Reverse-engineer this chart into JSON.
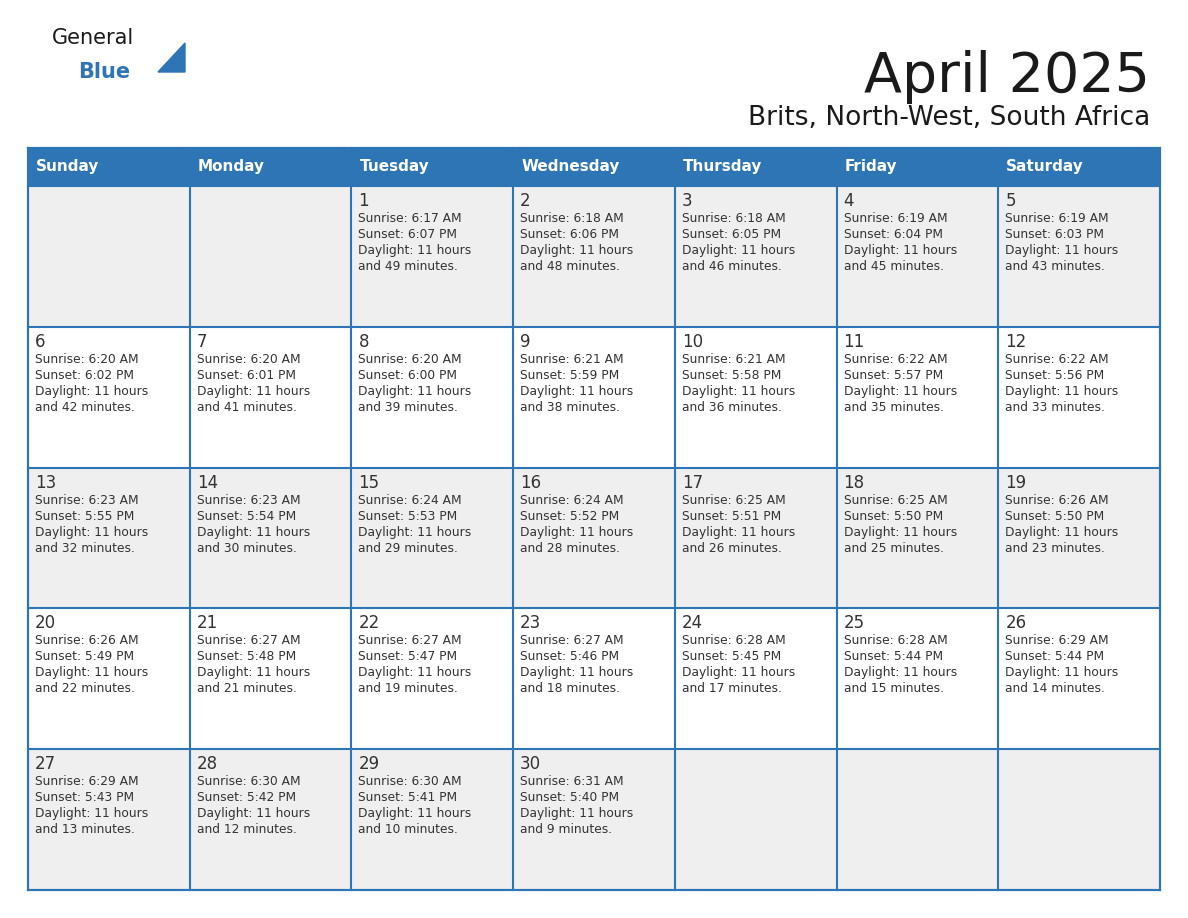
{
  "title": "April 2025",
  "subtitle": "Brits, North-West, South Africa",
  "days_of_week": [
    "Sunday",
    "Monday",
    "Tuesday",
    "Wednesday",
    "Thursday",
    "Friday",
    "Saturday"
  ],
  "header_color": "#2E75B6",
  "header_text_color": "#FFFFFF",
  "border_color": "#2E75B6",
  "text_color": "#333333",
  "day_number_color": "#333333",
  "title_color": "#1a1a1a",
  "logo_general_color": "#1a1a1a",
  "logo_blue_color": "#2E75B6",
  "row_colors": [
    "#EFEFEF",
    "#FFFFFF",
    "#EFEFEF",
    "#FFFFFF",
    "#EFEFEF"
  ],
  "calendar_data": [
    [
      {
        "day": null,
        "sunrise": null,
        "sunset": null,
        "daylight": null
      },
      {
        "day": null,
        "sunrise": null,
        "sunset": null,
        "daylight": null
      },
      {
        "day": 1,
        "sunrise": "6:17 AM",
        "sunset": "6:07 PM",
        "daylight": "11 hours and 49 minutes."
      },
      {
        "day": 2,
        "sunrise": "6:18 AM",
        "sunset": "6:06 PM",
        "daylight": "11 hours and 48 minutes."
      },
      {
        "day": 3,
        "sunrise": "6:18 AM",
        "sunset": "6:05 PM",
        "daylight": "11 hours and 46 minutes."
      },
      {
        "day": 4,
        "sunrise": "6:19 AM",
        "sunset": "6:04 PM",
        "daylight": "11 hours and 45 minutes."
      },
      {
        "day": 5,
        "sunrise": "6:19 AM",
        "sunset": "6:03 PM",
        "daylight": "11 hours and 43 minutes."
      }
    ],
    [
      {
        "day": 6,
        "sunrise": "6:20 AM",
        "sunset": "6:02 PM",
        "daylight": "11 hours and 42 minutes."
      },
      {
        "day": 7,
        "sunrise": "6:20 AM",
        "sunset": "6:01 PM",
        "daylight": "11 hours and 41 minutes."
      },
      {
        "day": 8,
        "sunrise": "6:20 AM",
        "sunset": "6:00 PM",
        "daylight": "11 hours and 39 minutes."
      },
      {
        "day": 9,
        "sunrise": "6:21 AM",
        "sunset": "5:59 PM",
        "daylight": "11 hours and 38 minutes."
      },
      {
        "day": 10,
        "sunrise": "6:21 AM",
        "sunset": "5:58 PM",
        "daylight": "11 hours and 36 minutes."
      },
      {
        "day": 11,
        "sunrise": "6:22 AM",
        "sunset": "5:57 PM",
        "daylight": "11 hours and 35 minutes."
      },
      {
        "day": 12,
        "sunrise": "6:22 AM",
        "sunset": "5:56 PM",
        "daylight": "11 hours and 33 minutes."
      }
    ],
    [
      {
        "day": 13,
        "sunrise": "6:23 AM",
        "sunset": "5:55 PM",
        "daylight": "11 hours and 32 minutes."
      },
      {
        "day": 14,
        "sunrise": "6:23 AM",
        "sunset": "5:54 PM",
        "daylight": "11 hours and 30 minutes."
      },
      {
        "day": 15,
        "sunrise": "6:24 AM",
        "sunset": "5:53 PM",
        "daylight": "11 hours and 29 minutes."
      },
      {
        "day": 16,
        "sunrise": "6:24 AM",
        "sunset": "5:52 PM",
        "daylight": "11 hours and 28 minutes."
      },
      {
        "day": 17,
        "sunrise": "6:25 AM",
        "sunset": "5:51 PM",
        "daylight": "11 hours and 26 minutes."
      },
      {
        "day": 18,
        "sunrise": "6:25 AM",
        "sunset": "5:50 PM",
        "daylight": "11 hours and 25 minutes."
      },
      {
        "day": 19,
        "sunrise": "6:26 AM",
        "sunset": "5:50 PM",
        "daylight": "11 hours and 23 minutes."
      }
    ],
    [
      {
        "day": 20,
        "sunrise": "6:26 AM",
        "sunset": "5:49 PM",
        "daylight": "11 hours and 22 minutes."
      },
      {
        "day": 21,
        "sunrise": "6:27 AM",
        "sunset": "5:48 PM",
        "daylight": "11 hours and 21 minutes."
      },
      {
        "day": 22,
        "sunrise": "6:27 AM",
        "sunset": "5:47 PM",
        "daylight": "11 hours and 19 minutes."
      },
      {
        "day": 23,
        "sunrise": "6:27 AM",
        "sunset": "5:46 PM",
        "daylight": "11 hours and 18 minutes."
      },
      {
        "day": 24,
        "sunrise": "6:28 AM",
        "sunset": "5:45 PM",
        "daylight": "11 hours and 17 minutes."
      },
      {
        "day": 25,
        "sunrise": "6:28 AM",
        "sunset": "5:44 PM",
        "daylight": "11 hours and 15 minutes."
      },
      {
        "day": 26,
        "sunrise": "6:29 AM",
        "sunset": "5:44 PM",
        "daylight": "11 hours and 14 minutes."
      }
    ],
    [
      {
        "day": 27,
        "sunrise": "6:29 AM",
        "sunset": "5:43 PM",
        "daylight": "11 hours and 13 minutes."
      },
      {
        "day": 28,
        "sunrise": "6:30 AM",
        "sunset": "5:42 PM",
        "daylight": "11 hours and 12 minutes."
      },
      {
        "day": 29,
        "sunrise": "6:30 AM",
        "sunset": "5:41 PM",
        "daylight": "11 hours and 10 minutes."
      },
      {
        "day": 30,
        "sunrise": "6:31 AM",
        "sunset": "5:40 PM",
        "daylight": "11 hours and 9 minutes."
      },
      {
        "day": null,
        "sunrise": null,
        "sunset": null,
        "daylight": null
      },
      {
        "day": null,
        "sunrise": null,
        "sunset": null,
        "daylight": null
      },
      {
        "day": null,
        "sunrise": null,
        "sunset": null,
        "daylight": null
      }
    ]
  ]
}
